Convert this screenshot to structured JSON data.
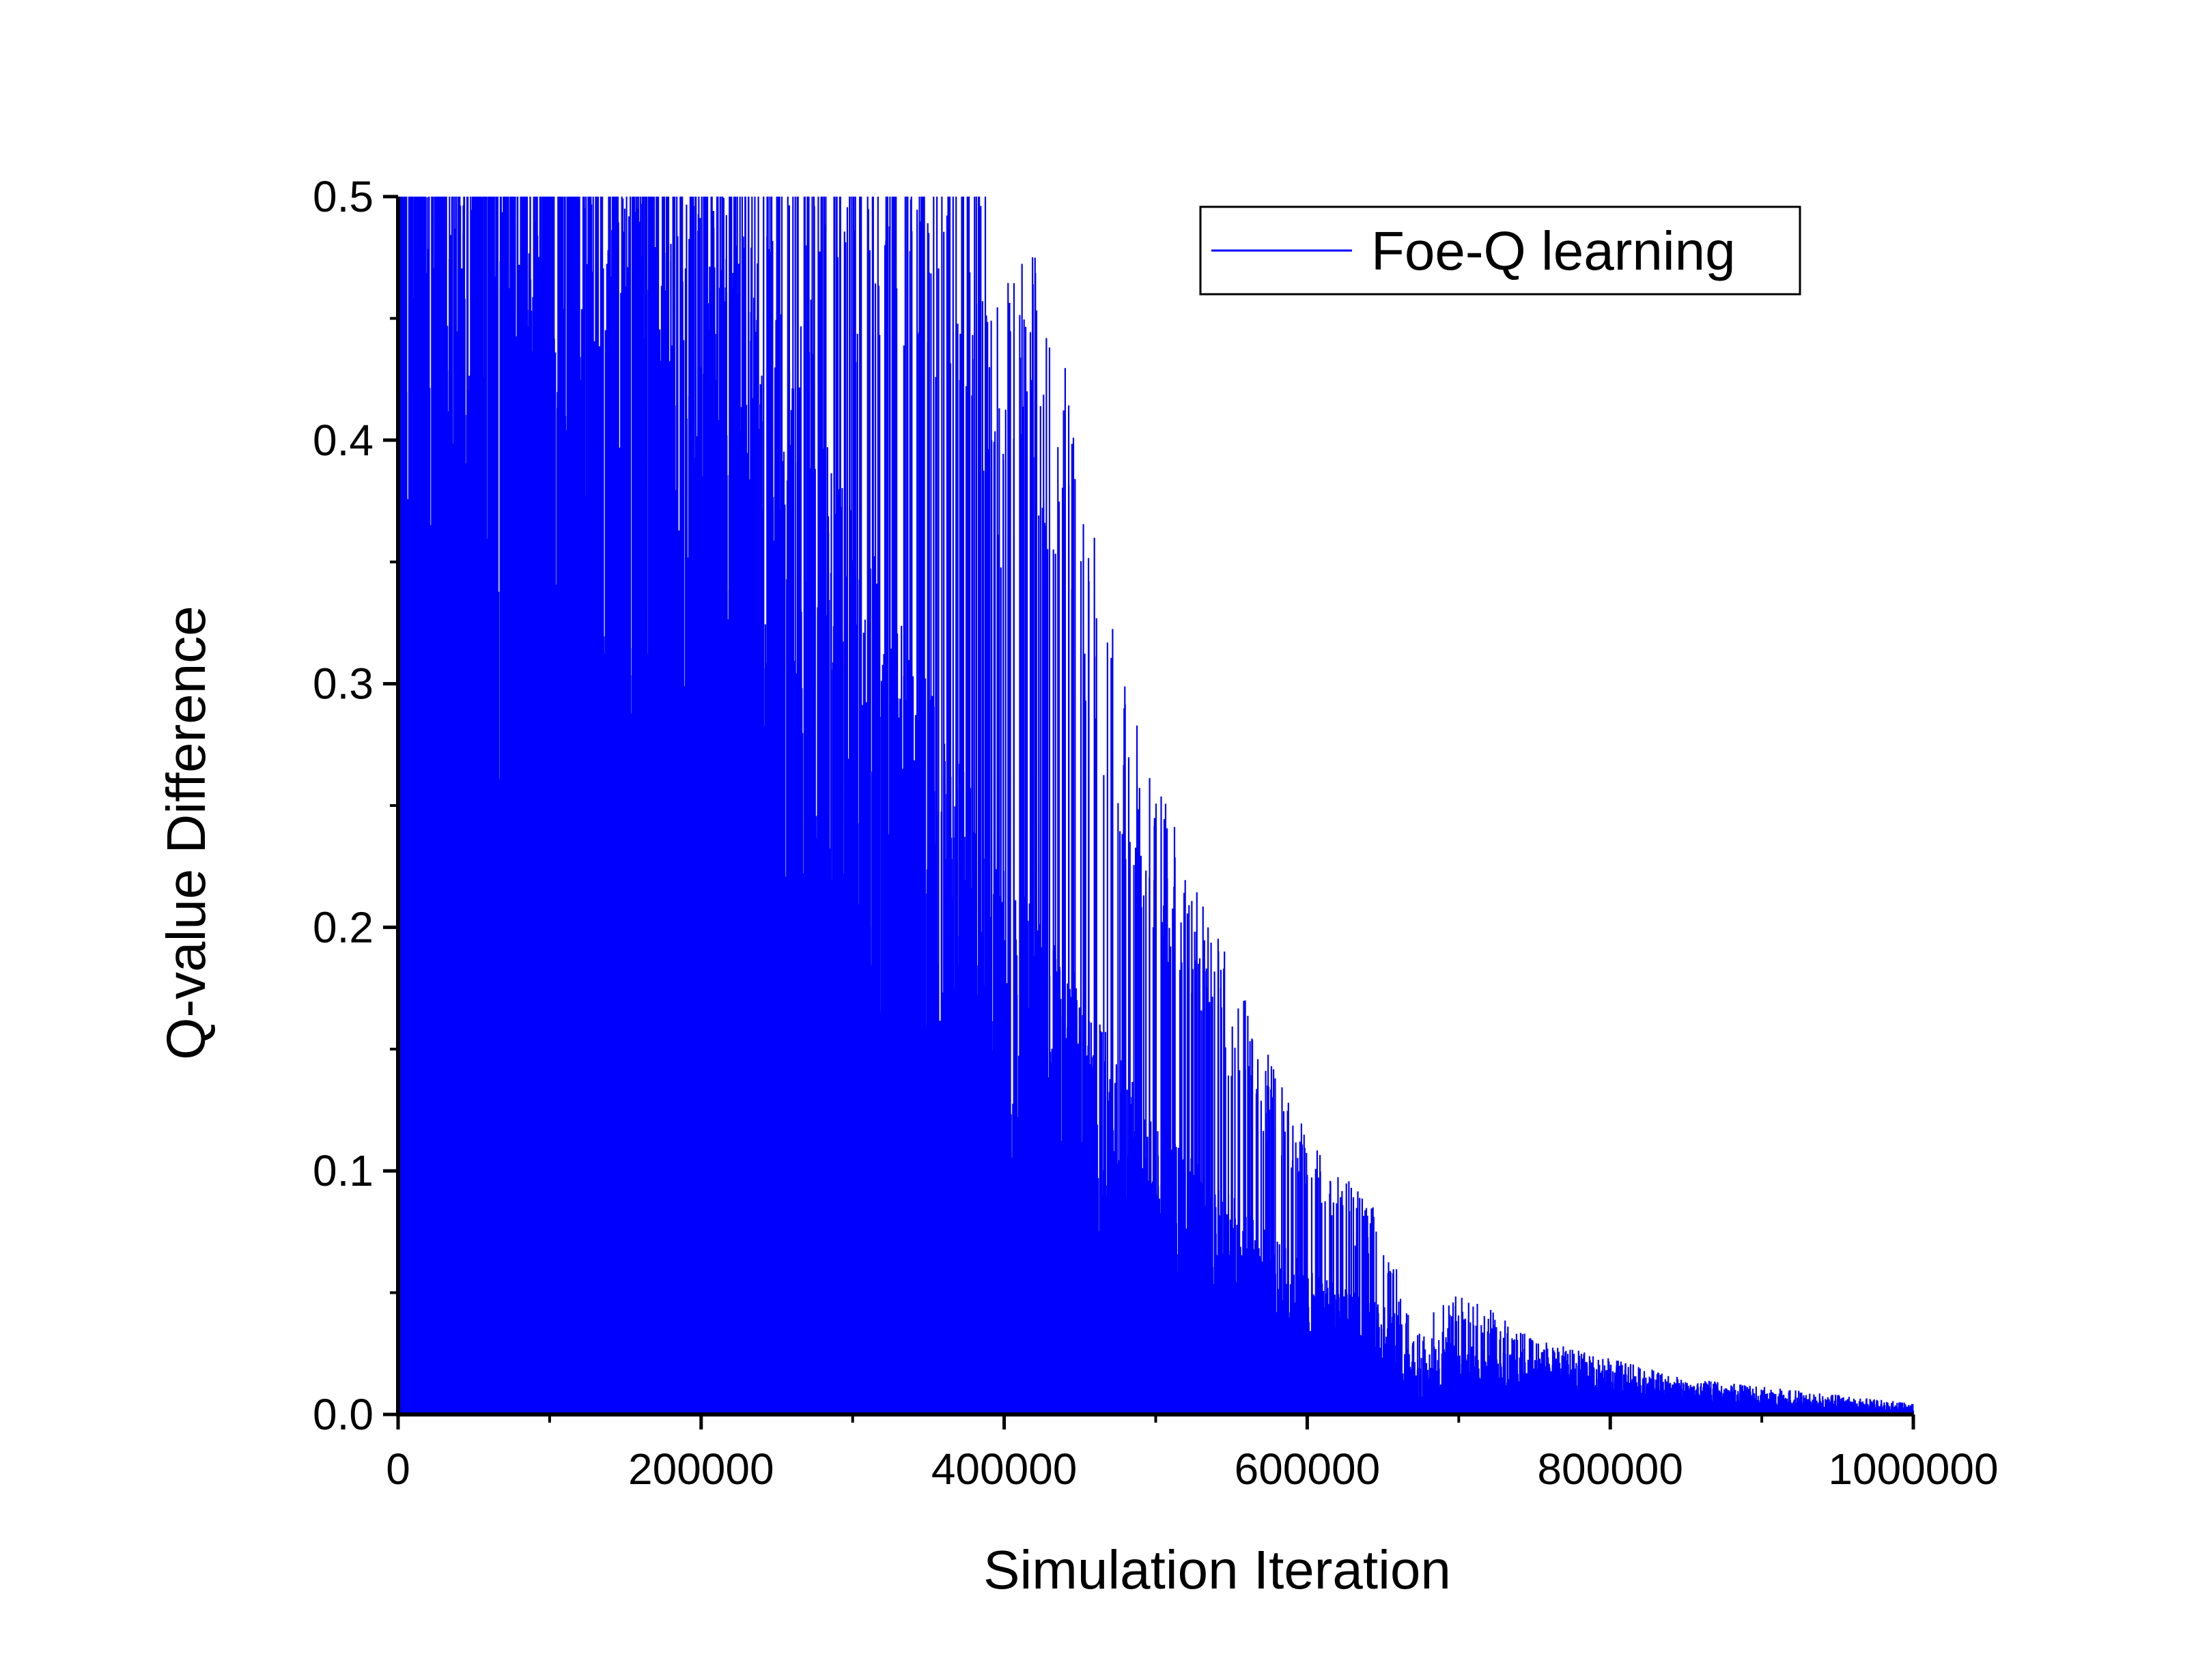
{
  "chart_data": {
    "type": "line",
    "title": "",
    "xlabel": "Simulation Iteration",
    "ylabel": "Q-value Difference",
    "xlim": [
      0,
      1000000
    ],
    "ylim": [
      0,
      0.5
    ],
    "x_ticks": [
      0,
      200000,
      400000,
      600000,
      800000,
      1000000
    ],
    "x_tick_labels": [
      "0",
      "200000",
      "400000",
      "600000",
      "800000",
      "1000000"
    ],
    "y_ticks": [
      0.0,
      0.1,
      0.2,
      0.3,
      0.4,
      0.5
    ],
    "y_tick_labels": [
      "0.0",
      "0.1",
      "0.2",
      "0.3",
      "0.4",
      "0.5"
    ],
    "grid": false,
    "legend_position": "top-right",
    "series": [
      {
        "name": "Foe-Q learning",
        "color": "#0000ff",
        "style": "spiky error trace (vertical spikes from 0)",
        "envelope": {
          "x": [
            0,
            50000,
            100000,
            200000,
            300000,
            370000,
            380000,
            400000,
            420000,
            450000,
            480000,
            500000,
            520000,
            550000,
            600000,
            650000,
            670000,
            700000,
            750000,
            800000,
            850000,
            900000,
            950000,
            1000000
          ],
          "y": [
            0.5,
            0.5,
            0.5,
            0.5,
            0.5,
            0.5,
            0.48,
            0.4,
            0.44,
            0.35,
            0.26,
            0.23,
            0.2,
            0.16,
            0.1,
            0.07,
            0.03,
            0.045,
            0.027,
            0.02,
            0.013,
            0.01,
            0.007,
            0.004
          ]
        },
        "bulk": {
          "x": [
            0,
            100000,
            200000,
            300000,
            400000,
            450000,
            500000,
            550000,
            600000,
            650000,
            700000,
            750000,
            800000,
            850000,
            900000,
            950000,
            1000000
          ],
          "y": [
            0.45,
            0.4,
            0.35,
            0.25,
            0.15,
            0.12,
            0.08,
            0.06,
            0.04,
            0.03,
            0.02,
            0.015,
            0.012,
            0.008,
            0.006,
            0.004,
            0.002
          ]
        }
      }
    ]
  }
}
